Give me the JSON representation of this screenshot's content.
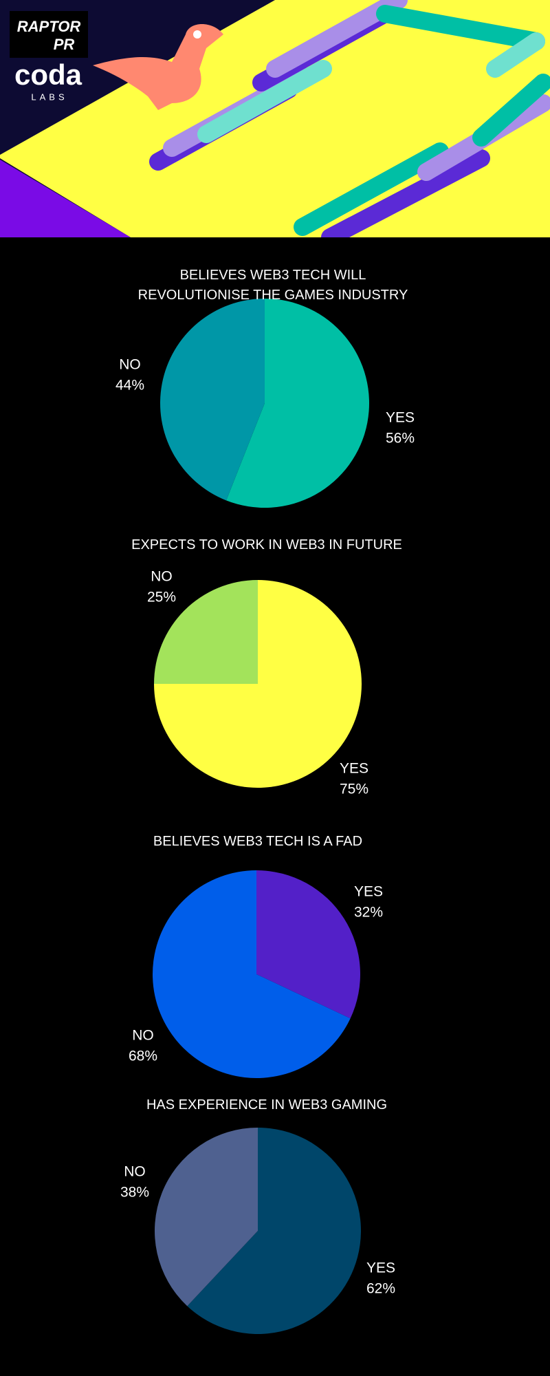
{
  "header": {
    "logo_top": "RAPTOR",
    "logo_bottom": "PR",
    "brand": "coda",
    "brand_sub": "LABS"
  },
  "chart_data": [
    {
      "type": "pie",
      "title": "BELIEVES WEB3 TECH WILL REVOLUTIONISE THE GAMES INDUSTRY",
      "categories": [
        "YES",
        "NO"
      ],
      "values": [
        56,
        44
      ],
      "value_labels": [
        "56%",
        "44%"
      ],
      "colors": [
        "#00bfa5",
        "#0097a7"
      ]
    },
    {
      "type": "pie",
      "title": "EXPECTS TO WORK IN WEB3 IN FUTURE",
      "categories": [
        "YES",
        "NO"
      ],
      "values": [
        75,
        25
      ],
      "value_labels": [
        "75%",
        "25%"
      ],
      "colors": [
        "#ffff44",
        "#a3e35b"
      ]
    },
    {
      "type": "pie",
      "title": "BELIEVES WEB3 TECH IS A FAD",
      "categories": [
        "YES",
        "NO"
      ],
      "values": [
        32,
        68
      ],
      "value_labels": [
        "32%",
        "68%"
      ],
      "colors": [
        "#5320c8",
        "#005eea"
      ]
    },
    {
      "type": "pie",
      "title": "HAS EXPERIENCE IN WEB3 GAMING",
      "categories": [
        "YES",
        "NO"
      ],
      "values": [
        62,
        38
      ],
      "value_labels": [
        "62%",
        "38%"
      ],
      "colors": [
        "#00466a",
        "#4f6190"
      ]
    }
  ]
}
